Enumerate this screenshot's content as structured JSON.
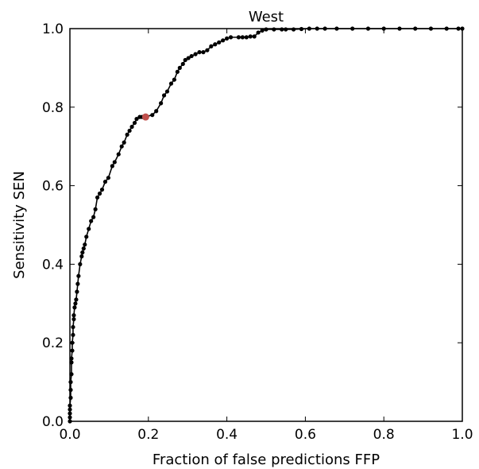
{
  "chart_data": {
    "type": "line",
    "title": "West",
    "xlabel": "Fraction of false predictions FFP",
    "ylabel": "Sensitivity SEN",
    "xlim": [
      0.0,
      1.0
    ],
    "ylim": [
      0.0,
      1.0
    ],
    "xticks": [
      "0.0",
      "0.2",
      "0.4",
      "0.6",
      "0.8",
      "1.0"
    ],
    "yticks": [
      "0.0",
      "0.2",
      "0.4",
      "0.6",
      "0.8",
      "1.0"
    ],
    "grid": false,
    "legend": "none",
    "series": [
      {
        "color": "#000000",
        "marker": "circle",
        "x": [
          0.0,
          0.0,
          0.0,
          0.0,
          0.0,
          0.002,
          0.002,
          0.002,
          0.004,
          0.004,
          0.004,
          0.006,
          0.006,
          0.008,
          0.008,
          0.01,
          0.01,
          0.012,
          0.014,
          0.016,
          0.018,
          0.02,
          0.022,
          0.026,
          0.03,
          0.032,
          0.035,
          0.038,
          0.042,
          0.048,
          0.054,
          0.06,
          0.065,
          0.07,
          0.076,
          0.082,
          0.09,
          0.098,
          0.108,
          0.114,
          0.124,
          0.132,
          0.138,
          0.146,
          0.152,
          0.158,
          0.165,
          0.17,
          0.178,
          0.184,
          0.19,
          0.21,
          0.22,
          0.232,
          0.24,
          0.248,
          0.258,
          0.266,
          0.274,
          0.28,
          0.288,
          0.294,
          0.302,
          0.31,
          0.32,
          0.33,
          0.34,
          0.35,
          0.36,
          0.37,
          0.38,
          0.39,
          0.4,
          0.41,
          0.43,
          0.44,
          0.45,
          0.46,
          0.47,
          0.48,
          0.49,
          0.5,
          0.52,
          0.54,
          0.55,
          0.57,
          0.59,
          0.61,
          0.63,
          0.65,
          0.68,
          0.72,
          0.76,
          0.8,
          0.84,
          0.88,
          0.92,
          0.96,
          0.99,
          1.0
        ],
        "y": [
          0.0,
          0.01,
          0.02,
          0.03,
          0.04,
          0.06,
          0.08,
          0.1,
          0.12,
          0.15,
          0.16,
          0.18,
          0.2,
          0.22,
          0.24,
          0.26,
          0.27,
          0.29,
          0.3,
          0.31,
          0.33,
          0.35,
          0.37,
          0.4,
          0.42,
          0.43,
          0.44,
          0.45,
          0.47,
          0.49,
          0.51,
          0.52,
          0.54,
          0.57,
          0.58,
          0.59,
          0.61,
          0.62,
          0.65,
          0.66,
          0.68,
          0.7,
          0.71,
          0.73,
          0.74,
          0.75,
          0.76,
          0.77,
          0.775,
          0.775,
          0.775,
          0.78,
          0.79,
          0.81,
          0.83,
          0.84,
          0.86,
          0.87,
          0.89,
          0.9,
          0.91,
          0.92,
          0.925,
          0.93,
          0.935,
          0.94,
          0.94,
          0.945,
          0.955,
          0.96,
          0.965,
          0.97,
          0.975,
          0.978,
          0.978,
          0.978,
          0.978,
          0.98,
          0.98,
          0.99,
          0.995,
          0.998,
          0.998,
          0.998,
          0.998,
          0.998,
          0.999,
          1.0,
          1.0,
          1.0,
          1.0,
          1.0,
          1.0,
          1.0,
          1.0,
          1.0,
          1.0,
          1.0,
          1.0,
          1.0
        ]
      }
    ],
    "highlight_point": {
      "x": 0.193,
      "y": 0.775,
      "color": "#c0504d"
    }
  }
}
